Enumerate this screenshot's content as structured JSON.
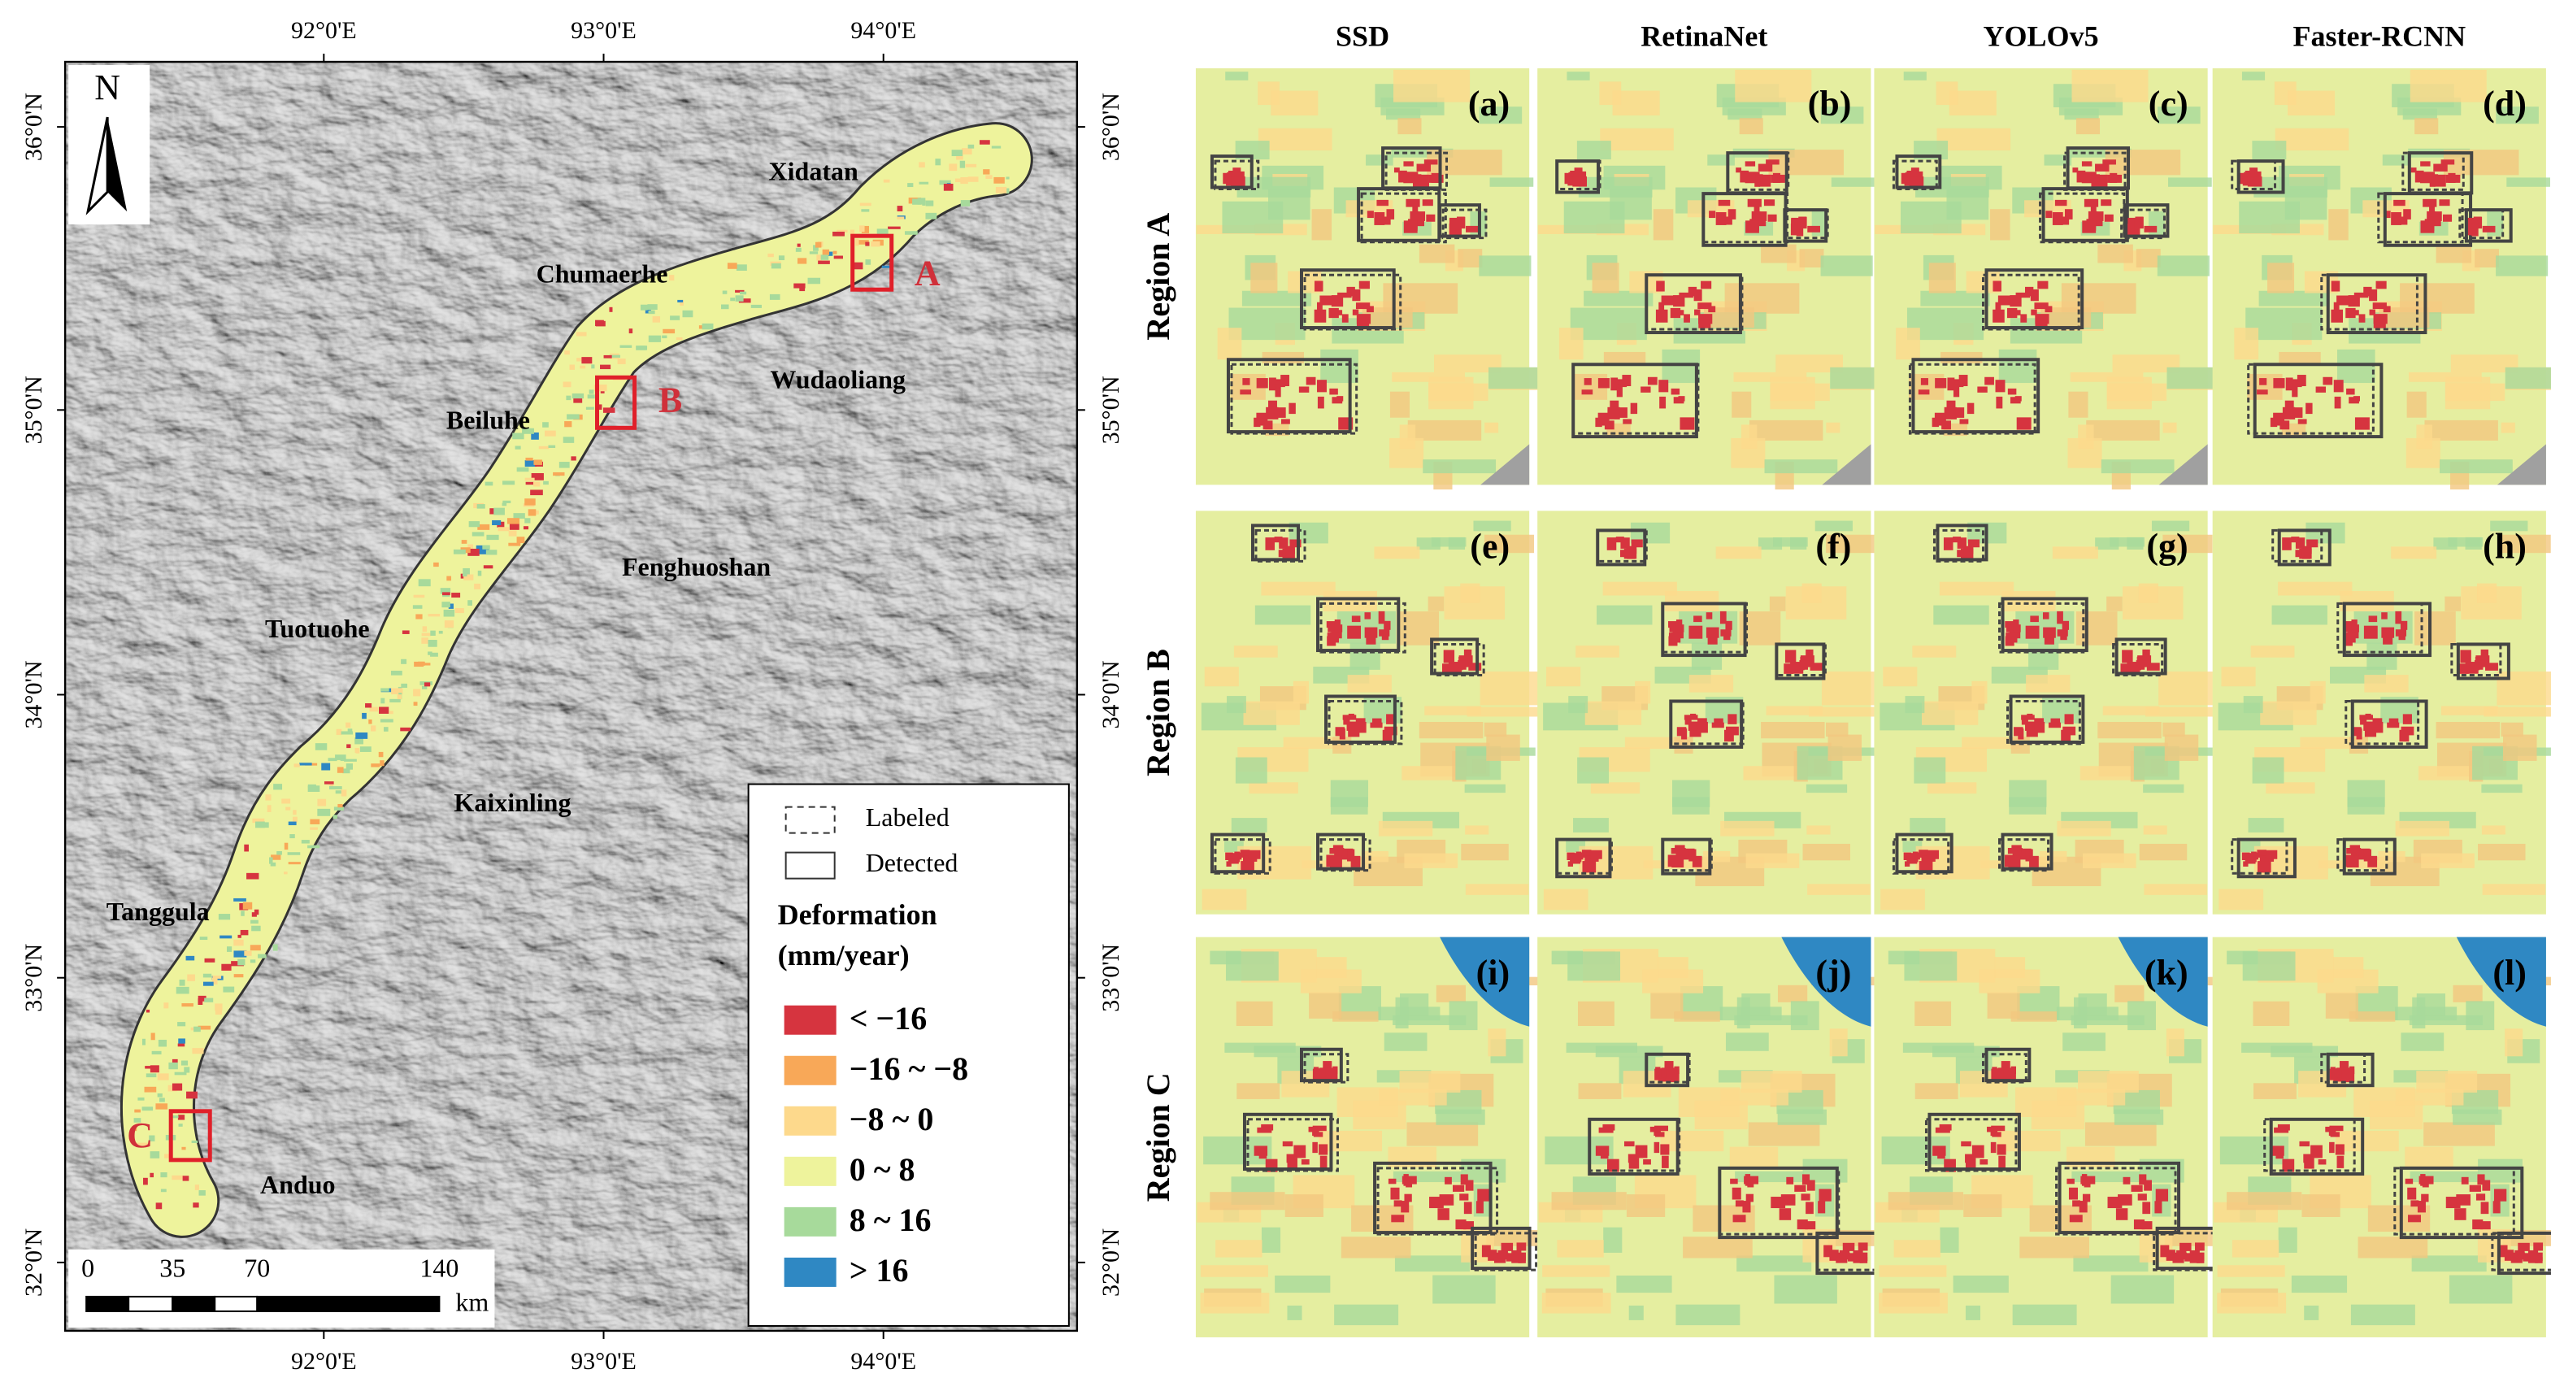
{
  "map": {
    "lon_labels": [
      "92°0'E",
      "93°0'E",
      "94°0'E"
    ],
    "lat_labels": [
      "36°0'N",
      "35°0'N",
      "34°0'N",
      "33°0'N",
      "32°0'N"
    ],
    "north": "N",
    "places": [
      "Xidatan",
      "Chumaerhe",
      "Wudaoliang",
      "Beiluhe",
      "Fenghuoshan",
      "Tuotuohe",
      "Kaixinling",
      "Tanggula",
      "Anduo"
    ],
    "regions": [
      "A",
      "B",
      "C"
    ],
    "scale": {
      "ticks": [
        "0",
        "35",
        "70",
        "140"
      ],
      "unit": "km"
    },
    "legend": {
      "box_labels": [
        "Labeled",
        "Detected"
      ],
      "title": [
        "Deformation",
        "(mm/year)"
      ],
      "classes": [
        {
          "label": "< −16",
          "color": "#d6343f"
        },
        {
          "label": "−16 ~ −8",
          "color": "#f8a858"
        },
        {
          "label": "−8 ~ 0",
          "color": "#fdd98c"
        },
        {
          "label": "0 ~ 8",
          "color": "#eef39c"
        },
        {
          "label": "8 ~ 16",
          "color": "#a7da9b"
        },
        {
          "label": "> 16",
          "color": "#2f88c3"
        }
      ]
    }
  },
  "panels": {
    "columns": [
      "SSD",
      "RetinaNet",
      "YOLOv5",
      "Faster-RCNN"
    ],
    "rows": [
      "Region A",
      "Region B",
      "Region C"
    ],
    "labels": [
      "(a)",
      "(b)",
      "(c)",
      "(d)",
      "(e)",
      "(f)",
      "(g)",
      "(h)",
      "(i)",
      "(j)",
      "(k)",
      "(l)"
    ]
  }
}
